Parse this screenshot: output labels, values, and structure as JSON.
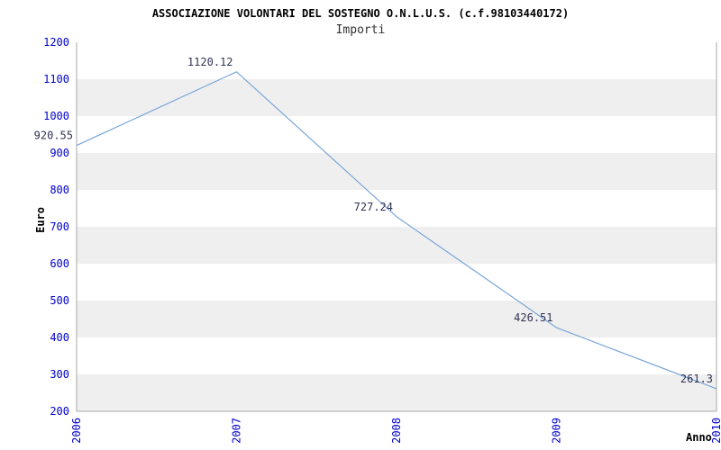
{
  "header": {
    "title": "ASSOCIAZIONE VOLONTARI DEL SOSTEGNO O.N.L.U.S. (c.f.98103440172)",
    "subtitle": "Importi"
  },
  "chart_data": {
    "type": "line",
    "title": "ASSOCIAZIONE VOLONTARI DEL SOSTEGNO O.N.L.U.S. (c.f.98103440172)",
    "subtitle": "Importi",
    "xlabel": "Anno",
    "ylabel": "Euro",
    "x": [
      "2006",
      "2007",
      "2008",
      "2009",
      "2010"
    ],
    "values": [
      920.55,
      1120.12,
      727.24,
      426.51,
      261.3
    ],
    "point_labels": [
      "920.55",
      "1120.12",
      "727.24",
      "426.51",
      "261.3"
    ],
    "ylim": [
      200,
      1200
    ],
    "ytick_step": 100,
    "ytick_labels": [
      "200",
      "300",
      "400",
      "500",
      "600",
      "700",
      "800",
      "900",
      "1000",
      "1100",
      "1200"
    ],
    "grid": "horizontal-bands",
    "legend": "none",
    "colors": {
      "line": "#7aa6d9",
      "axis": "#aaaaaa",
      "tick_label": "#0000cc",
      "point_label": "#333355",
      "band_light": "#ffffff",
      "band_dark": "#efefef"
    }
  }
}
